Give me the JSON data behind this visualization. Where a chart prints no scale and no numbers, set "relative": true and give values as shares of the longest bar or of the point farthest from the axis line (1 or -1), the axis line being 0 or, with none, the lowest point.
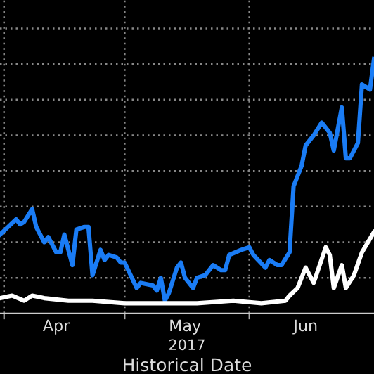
{
  "chart_data": {
    "type": "line",
    "relative": true,
    "xlabel": "Historical Date",
    "annotations": [
      "2017"
    ],
    "xlim": [
      "2017-03-31",
      "2017-07-02"
    ],
    "xticks": [
      {
        "value": "2017-04-01",
        "label": null
      },
      {
        "value": "2017-04-14",
        "label": "Apr"
      },
      {
        "value": "2017-05-01",
        "label": null
      },
      {
        "value": "2017-05-16",
        "label": "May"
      },
      {
        "value": "2017-06-01",
        "label": null
      },
      {
        "value": "2017-06-15",
        "label": "Jun"
      }
    ],
    "grid": true,
    "marker": "none",
    "line_style": "solid",
    "series": [
      {
        "color": "#1a7cf5",
        "x": [
          "2017-03-31",
          "2017-04-04",
          "2017-04-05",
          "2017-04-06",
          "2017-04-08",
          "2017-04-09",
          "2017-04-11",
          "2017-04-12",
          "2017-04-14",
          "2017-04-15",
          "2017-04-16",
          "2017-04-18",
          "2017-04-19",
          "2017-04-21",
          "2017-04-22",
          "2017-04-23",
          "2017-04-25",
          "2017-04-26",
          "2017-04-27",
          "2017-04-29",
          "2017-04-30",
          "2017-05-01",
          "2017-05-04",
          "2017-05-05",
          "2017-05-08",
          "2017-05-09",
          "2017-05-10",
          "2017-05-11",
          "2017-05-12",
          "2017-05-14",
          "2017-05-15",
          "2017-05-16",
          "2017-05-18",
          "2017-05-19",
          "2017-05-21",
          "2017-05-23",
          "2017-05-25",
          "2017-05-26",
          "2017-05-27",
          "2017-05-30",
          "2017-06-01",
          "2017-06-02",
          "2017-06-05",
          "2017-06-06",
          "2017-06-08",
          "2017-06-09",
          "2017-06-11",
          "2017-06-12",
          "2017-06-14",
          "2017-06-15",
          "2017-06-17",
          "2017-06-19",
          "2017-06-21",
          "2017-06-22",
          "2017-06-24",
          "2017-06-25",
          "2017-06-26",
          "2017-06-28",
          "2017-06-29",
          "2017-07-01",
          "2017-07-02"
        ],
        "values": [
          0.31,
          0.37,
          0.35,
          0.36,
          0.41,
          0.34,
          0.28,
          0.3,
          0.24,
          0.24,
          0.31,
          0.19,
          0.33,
          0.34,
          0.34,
          0.15,
          0.25,
          0.21,
          0.23,
          0.22,
          0.2,
          0.2,
          0.1,
          0.12,
          0.11,
          0.09,
          0.14,
          0.05,
          0.08,
          0.18,
          0.2,
          0.14,
          0.1,
          0.14,
          0.15,
          0.19,
          0.17,
          0.17,
          0.23,
          0.25,
          0.26,
          0.23,
          0.18,
          0.21,
          0.19,
          0.19,
          0.24,
          0.5,
          0.58,
          0.66,
          0.7,
          0.75,
          0.71,
          0.64,
          0.81,
          0.61,
          0.61,
          0.67,
          0.9,
          0.88,
          1.0
        ]
      },
      {
        "color": "#ffffff",
        "x": [
          "2017-03-31",
          "2017-04-03",
          "2017-04-06",
          "2017-04-08",
          "2017-04-11",
          "2017-04-17",
          "2017-04-23",
          "2017-05-01",
          "2017-05-11",
          "2017-05-19",
          "2017-05-28",
          "2017-06-04",
          "2017-06-10",
          "2017-06-11",
          "2017-06-13",
          "2017-06-15",
          "2017-06-17",
          "2017-06-20",
          "2017-06-21",
          "2017-06-22",
          "2017-06-24",
          "2017-06-25",
          "2017-06-27",
          "2017-06-29",
          "2017-07-02"
        ],
        "values": [
          0.06,
          0.07,
          0.05,
          0.07,
          0.06,
          0.05,
          0.05,
          0.04,
          0.04,
          0.04,
          0.05,
          0.04,
          0.05,
          0.07,
          0.1,
          0.18,
          0.12,
          0.26,
          0.23,
          0.1,
          0.19,
          0.1,
          0.15,
          0.24,
          0.32
        ]
      }
    ]
  }
}
